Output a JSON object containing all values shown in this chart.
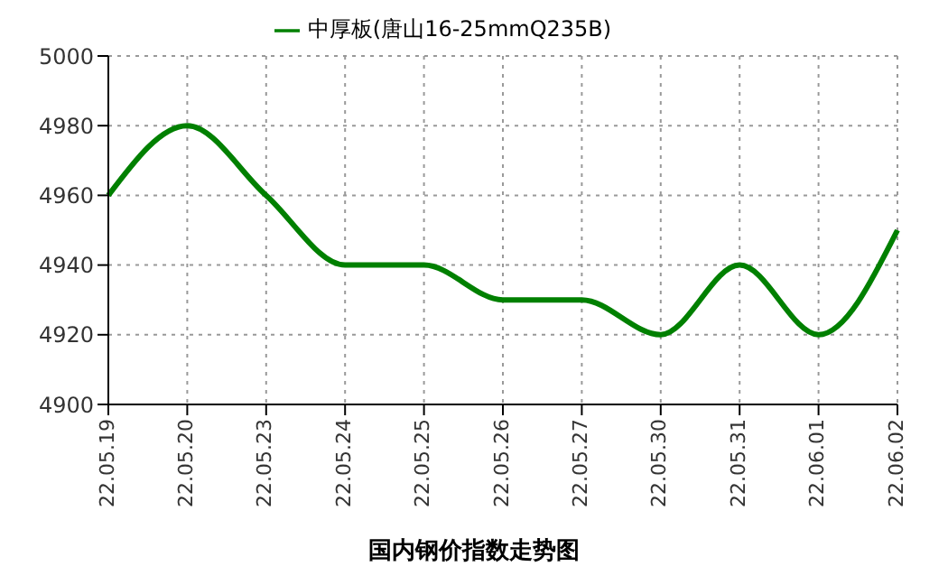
{
  "chart_data": {
    "type": "line",
    "title": "国内钢价指数走势图",
    "categories": [
      "22.05.19",
      "22.05.20",
      "22.05.23",
      "22.05.24",
      "22.05.25",
      "22.05.26",
      "22.05.27",
      "22.05.30",
      "22.05.31",
      "22.06.01",
      "22.06.02"
    ],
    "series": [
      {
        "name": "中厚板(唐山16-25mmQ235B)",
        "color": "#008000",
        "values": [
          4960,
          4980,
          4960,
          4940,
          4940,
          4930,
          4930,
          4920,
          4940,
          4920,
          4950
        ]
      }
    ],
    "ylim": [
      4900,
      5000
    ],
    "yticks": [
      4900,
      4920,
      4940,
      4960,
      4980,
      5000
    ],
    "grid": true,
    "legend": "top",
    "marker": "none",
    "line_style": "solid"
  }
}
